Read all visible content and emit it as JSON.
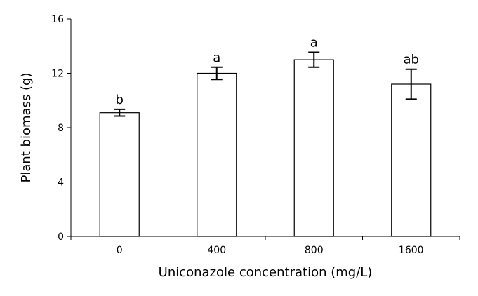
{
  "chart_data": {
    "type": "bar",
    "title": "",
    "xlabel": "Uniconazole concentration (mg/L)",
    "ylabel": "Plant biomass (g)",
    "categories": [
      "0",
      "400",
      "800",
      "1600"
    ],
    "values": [
      9.1,
      12.0,
      13.0,
      11.2
    ],
    "errors": [
      0.25,
      0.45,
      0.55,
      1.1
    ],
    "significance_labels": [
      "b",
      "a",
      "a",
      "ab"
    ],
    "ylim": [
      0,
      16
    ],
    "yticks": [
      "0",
      "4",
      "8",
      "12",
      "16"
    ],
    "grid": false,
    "legend": "none",
    "colors": {
      "bar_fill": "#ffffff",
      "bar_stroke": "#000000"
    }
  }
}
